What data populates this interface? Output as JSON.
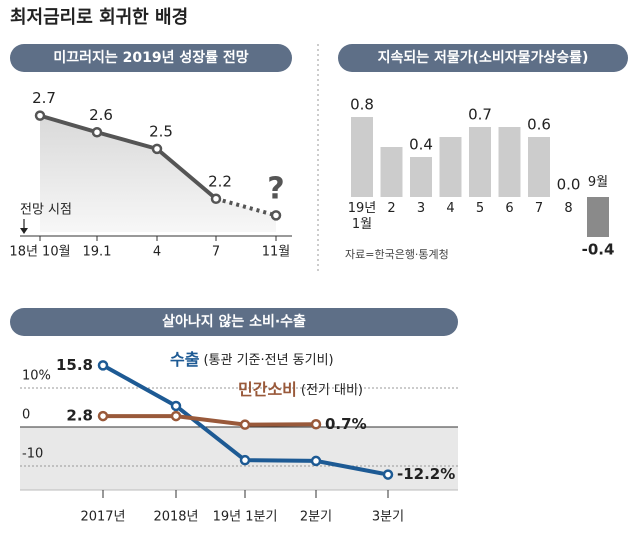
{
  "title": "최저금리로 회귀한 배경",
  "chart_data": [
    {
      "type": "line",
      "title": "미끄러지는 2019년 성장률 전망",
      "categories": [
        "18년 10월",
        "19.1",
        "4",
        "7",
        "11월"
      ],
      "values": [
        2.7,
        2.6,
        2.5,
        2.2,
        2.1
      ],
      "value_labels": [
        "2.7",
        "2.6",
        "2.5",
        "2.2",
        null
      ],
      "dashed_last": true,
      "color": "#555555",
      "annotations": [
        "?",
        "전망 시점"
      ],
      "ylim": [
        2.0,
        2.8
      ]
    },
    {
      "type": "bar",
      "title": "지속되는 저물가(소비자물가상승률)",
      "categories": [
        "19년\n1월",
        "2",
        "3",
        "4",
        "5",
        "6",
        "7",
        "8",
        "9월"
      ],
      "values": [
        0.8,
        0.5,
        0.4,
        0.6,
        0.7,
        0.7,
        0.6,
        0.0,
        -0.4
      ],
      "value_labels": [
        "0.8",
        null,
        "0.4",
        null,
        "0.7",
        null,
        "0.6",
        "0.0",
        "-0.4"
      ],
      "color": "#cccccc",
      "negative_color": "#8a8a8a",
      "source": "자료=한국은행·통계청",
      "ylim": [
        -0.4,
        0.9
      ]
    },
    {
      "type": "line",
      "title": "살아나지 않는 소비·수출",
      "categories": [
        "2017년",
        "2018년",
        "19년 1분기",
        "2분기",
        "3분기"
      ],
      "series": [
        {
          "name": "수출",
          "note": "(통관 기준·전년 동기비)",
          "color": "#1d5a94",
          "values": [
            15.8,
            5.4,
            -8.5,
            -8.7,
            -12.2
          ],
          "value_labels": [
            "15.8",
            null,
            null,
            null,
            "-12.2%"
          ]
        },
        {
          "name": "민간소비",
          "note": "(전기 대비)",
          "color": "#99593a",
          "values": [
            2.8,
            2.8,
            0.6,
            0.7,
            null
          ],
          "value_labels": [
            "2.8",
            null,
            null,
            "0.7%",
            null
          ]
        }
      ],
      "ylim": [
        -15,
        20
      ],
      "yticks": [
        {
          "value": 10,
          "label": "10%"
        },
        0,
        -10
      ],
      "grid": true
    }
  ]
}
